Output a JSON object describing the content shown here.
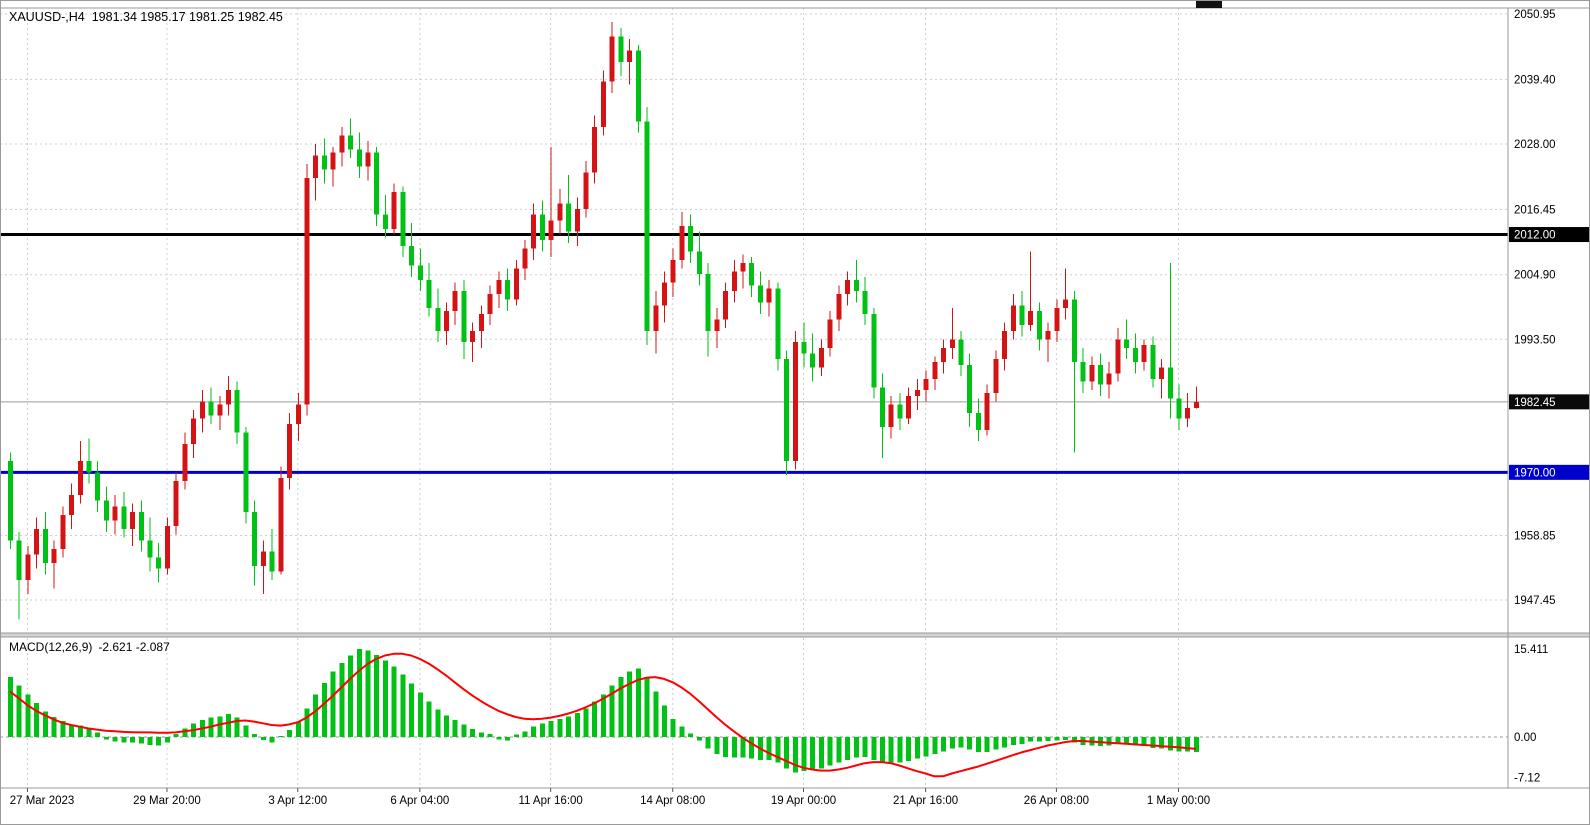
{
  "header": {
    "title": "XAUUSD-,H4",
    "ohlc": "1981.34 1985.17 1981.25 1982.45"
  },
  "macd_label": {
    "name": "MACD(12,26,9)",
    "values": "-2.621 -2.087"
  },
  "colors": {
    "bull": "#d41414",
    "bear": "#00c214",
    "macd_hist": "#00c214",
    "macd_signal": "#ff0000",
    "grid": "#cdcdcd",
    "frame": "#9a9a9a",
    "splitter": "#d6d3ce",
    "hline_black": "#000000",
    "hline_blue": "#0000cc",
    "current_line": "#9a9a9a",
    "badge_dark": "#0a0a0a",
    "badge_text": "#ffffff",
    "shift_marker": "#111111"
  },
  "chart_data": {
    "type": "candlestick",
    "symbol": "XAUUSD",
    "timeframe": "H4",
    "title": "XAUUSD-,H4 1981.34 1985.17 1981.25 1982.45",
    "last_ohlc": {
      "open": 1981.34,
      "high": 1985.17,
      "low": 1981.25,
      "close": 1982.45
    },
    "ylim": [
      1941.5,
      2052.5
    ],
    "price_axis": {
      "ticks": [
        {
          "v": 2050.95,
          "label": "2050.95"
        },
        {
          "v": 2039.4,
          "label": "2039.40"
        },
        {
          "v": 2028.0,
          "label": "2028.00"
        },
        {
          "v": 2016.45,
          "label": "2016.45"
        },
        {
          "v": 2004.9,
          "label": "2004.90"
        },
        {
          "v": 1993.5,
          "label": "1993.50"
        },
        {
          "v": 1958.85,
          "label": "1958.85"
        },
        {
          "v": 1947.45,
          "label": "1947.45"
        }
      ],
      "hlines": [
        {
          "v": 2012.0,
          "label": "2012.00",
          "bg": "#000000",
          "line_color": "#000000",
          "line_width": 3
        },
        {
          "v": 1970.0,
          "label": "1970.00",
          "bg": "#0000cc",
          "line_color": "#0000cc",
          "line_width": 3
        }
      ],
      "current": {
        "v": 1982.45,
        "label": "1982.45",
        "bg": "#0a0a0a",
        "line_color": "#9a9a9a",
        "line_width": 1
      }
    },
    "time_axis": [
      {
        "index": 2,
        "label": "27 Mar 2023"
      },
      {
        "index": 18,
        "label": "29 Mar 20:00"
      },
      {
        "index": 33,
        "label": "3 Apr 12:00"
      },
      {
        "index": 47,
        "label": "6 Apr 04:00"
      },
      {
        "index": 62,
        "label": "11 Apr 16:00"
      },
      {
        "index": 76,
        "label": "14 Apr 08:00"
      },
      {
        "index": 91,
        "label": "19 Apr 00:00"
      },
      {
        "index": 105,
        "label": "21 Apr 16:00"
      },
      {
        "index": 120,
        "label": "26 Apr 08:00"
      },
      {
        "index": 134,
        "label": "1 May 00:00"
      }
    ],
    "candles": [
      [
        1972,
        1973.5,
        1956.5,
        1958
      ],
      [
        1958,
        1959.5,
        1944,
        1951
      ],
      [
        1951,
        1957,
        1948.5,
        1955.5
      ],
      [
        1955.5,
        1962,
        1953,
        1960
      ],
      [
        1960,
        1963,
        1952,
        1954
      ],
      [
        1954,
        1958,
        1949.5,
        1956.5
      ],
      [
        1956.5,
        1964,
        1955,
        1962.5
      ],
      [
        1962.5,
        1968,
        1960,
        1966
      ],
      [
        1966,
        1975.5,
        1964.5,
        1972
      ],
      [
        1972,
        1976,
        1968,
        1970
      ],
      [
        1970,
        1972,
        1963,
        1965
      ],
      [
        1965,
        1967.5,
        1959.5,
        1961.5
      ],
      [
        1961.5,
        1966,
        1959,
        1964
      ],
      [
        1964,
        1966.5,
        1958.5,
        1960
      ],
      [
        1960,
        1964.5,
        1957,
        1963
      ],
      [
        1963,
        1965,
        1956,
        1958
      ],
      [
        1958,
        1962,
        1952.5,
        1955
      ],
      [
        1955,
        1957.5,
        1950.5,
        1953
      ],
      [
        1953,
        1962,
        1952,
        1960.5
      ],
      [
        1960.5,
        1970,
        1959,
        1968.5
      ],
      [
        1968.5,
        1977,
        1967,
        1975
      ],
      [
        1975,
        1981,
        1972.5,
        1979.5
      ],
      [
        1979.5,
        1984.5,
        1977,
        1982.5
      ],
      [
        1982.5,
        1985,
        1978.5,
        1980
      ],
      [
        1980,
        1983.5,
        1977.5,
        1982
      ],
      [
        1982,
        1987,
        1980,
        1984.5
      ],
      [
        1984.5,
        1986,
        1975,
        1977
      ],
      [
        1977,
        1978,
        1961,
        1963
      ],
      [
        1963,
        1965,
        1950,
        1953.5
      ],
      [
        1953.5,
        1958,
        1948.5,
        1956
      ],
      [
        1956,
        1960,
        1951,
        1952.5
      ],
      [
        1952.5,
        1971,
        1952,
        1969
      ],
      [
        1969,
        1980.5,
        1967,
        1978.5
      ],
      [
        1978.5,
        1984,
        1975.5,
        1982
      ],
      [
        1982,
        2024.5,
        1980,
        2022
      ],
      [
        2022,
        2028,
        2018,
        2026
      ],
      [
        2026,
        2029,
        2021,
        2023.5
      ],
      [
        2023.5,
        2027.5,
        2020.5,
        2026.5
      ],
      [
        2026.5,
        2031,
        2024,
        2029.5
      ],
      [
        2029.5,
        2032.5,
        2025.5,
        2027
      ],
      [
        2027,
        2030,
        2022,
        2024
      ],
      [
        2024,
        2028.5,
        2021.5,
        2026.5
      ],
      [
        2026.5,
        2027.5,
        2013.5,
        2015.5
      ],
      [
        2015.5,
        2019,
        2011.5,
        2013
      ],
      [
        2013,
        2021,
        2012,
        2019.5
      ],
      [
        2019.5,
        2020.5,
        2008,
        2010
      ],
      [
        2010,
        2014,
        2004.5,
        2006.5
      ],
      [
        2006.5,
        2009.5,
        2002,
        2004
      ],
      [
        2004,
        2007,
        1997.5,
        1999
      ],
      [
        1999,
        2002.5,
        1993,
        1995
      ],
      [
        1995,
        2000,
        1992.5,
        1998.5
      ],
      [
        1998.5,
        2003.5,
        1996,
        2002
      ],
      [
        2002,
        2004,
        1990,
        1993
      ],
      [
        1993,
        1996.5,
        1989.5,
        1995
      ],
      [
        1995,
        1999.5,
        1992,
        1998
      ],
      [
        1998,
        2003,
        1996,
        2001.5
      ],
      [
        2001.5,
        2005.5,
        1999,
        2004
      ],
      [
        2004,
        2006,
        1998.5,
        2000.5
      ],
      [
        2000.5,
        2007.5,
        1999.5,
        2006
      ],
      [
        2006,
        2011,
        2004,
        2009.5
      ],
      [
        2009.5,
        2017.5,
        2007.5,
        2015.5
      ],
      [
        2015.5,
        2018,
        2009,
        2011
      ],
      [
        2011,
        2027.5,
        2008,
        2014.5
      ],
      [
        2014.5,
        2020,
        2012,
        2017.5
      ],
      [
        2017.5,
        2022.5,
        2010.5,
        2012.5
      ],
      [
        2012.5,
        2018.5,
        2010,
        2016.5
      ],
      [
        2016.5,
        2025,
        2015,
        2023
      ],
      [
        2023,
        2033,
        2021,
        2031
      ],
      [
        2031,
        2041,
        2029.5,
        2039
      ],
      [
        2039,
        2049.5,
        2037,
        2047
      ],
      [
        2047,
        2048.5,
        2040,
        2042.5
      ],
      [
        2042.5,
        2046.5,
        2038.5,
        2044.5
      ],
      [
        2044.5,
        2045.5,
        2030,
        2032
      ],
      [
        2032,
        2034.5,
        1992.5,
        1995
      ],
      [
        1995,
        2002,
        1991,
        1999.5
      ],
      [
        1999.5,
        2005.5,
        1996.5,
        2003.5
      ],
      [
        2003.5,
        2009.5,
        2001,
        2007.5
      ],
      [
        2007.5,
        2016,
        2006,
        2013.5
      ],
      [
        2013.5,
        2015.5,
        2007,
        2009
      ],
      [
        2009,
        2012.5,
        2003,
        2005
      ],
      [
        2005,
        2007,
        1990.5,
        1995
      ],
      [
        1995,
        1999,
        1992,
        1997
      ],
      [
        1997,
        2003.5,
        1995.5,
        2002
      ],
      [
        2002,
        2007.5,
        2000,
        2005.5
      ],
      [
        2005.5,
        2008.5,
        2002.5,
        2007
      ],
      [
        2007,
        2008,
        2001,
        2003
      ],
      [
        2003,
        2005.5,
        1998,
        2000
      ],
      [
        2000,
        2004,
        1997.5,
        2002.5
      ],
      [
        2002.5,
        2003.5,
        1988,
        1990
      ],
      [
        1990,
        1991.5,
        1969.5,
        1972
      ],
      [
        1972,
        1995,
        1970.5,
        1993
      ],
      [
        1993,
        1996.5,
        1988.5,
        1991
      ],
      [
        1991,
        1994.5,
        1986,
        1988.5
      ],
      [
        1988.5,
        1993.5,
        1987,
        1992
      ],
      [
        1992,
        1998.5,
        1990.5,
        1997
      ],
      [
        1997,
        2003,
        1995,
        2001.5
      ],
      [
        2001.5,
        2005.5,
        1999.5,
        2004
      ],
      [
        2004,
        2007.5,
        2000,
        2002
      ],
      [
        2002,
        2004.5,
        1996,
        1998
      ],
      [
        1998,
        1999,
        1983,
        1985
      ],
      [
        1985,
        1987.5,
        1972.5,
        1978
      ],
      [
        1978,
        1983.5,
        1976,
        1982
      ],
      [
        1982,
        1984,
        1977.5,
        1979.5
      ],
      [
        1979.5,
        1985,
        1978.5,
        1983.5
      ],
      [
        1983.5,
        1986.5,
        1981,
        1984.5
      ],
      [
        1984.5,
        1988,
        1982.5,
        1986.5
      ],
      [
        1986.5,
        1990.5,
        1984.5,
        1989.5
      ],
      [
        1989.5,
        1993.5,
        1987.5,
        1992
      ],
      [
        1992,
        1999,
        1990,
        1993.5
      ],
      [
        1993.5,
        1995,
        1987,
        1989
      ],
      [
        1989,
        1991,
        1978,
        1980.5
      ],
      [
        1980.5,
        1983,
        1975.5,
        1977.5
      ],
      [
        1977.5,
        1985.5,
        1976.5,
        1984
      ],
      [
        1984,
        1991.5,
        1982.5,
        1990
      ],
      [
        1990,
        1996.5,
        1988,
        1995
      ],
      [
        1995,
        2001.5,
        1993.5,
        1999.5
      ],
      [
        1999.5,
        2002,
        1994,
        1996
      ],
      [
        1996,
        2009,
        1995,
        1998.5
      ],
      [
        1998.5,
        2000,
        1991.5,
        1993.5
      ],
      [
        1993.5,
        1996.5,
        1989.5,
        1995
      ],
      [
        1995,
        2000.5,
        1993,
        1999
      ],
      [
        1999,
        2006,
        1997,
        2000.5
      ],
      [
        2000.5,
        2002,
        1973.5,
        1989.5
      ],
      [
        1989.5,
        1992,
        1984,
        1986
      ],
      [
        1986,
        1990.5,
        1984.5,
        1989
      ],
      [
        1989,
        1991,
        1983.5,
        1985.5
      ],
      [
        1985.5,
        1989.5,
        1983,
        1987.5
      ],
      [
        1987.5,
        1995.5,
        1986,
        1993.5
      ],
      [
        1993.5,
        1997,
        1990,
        1992
      ],
      [
        1992,
        1994.5,
        1987.5,
        1989.5
      ],
      [
        1989.5,
        1993.5,
        1988,
        1992.5
      ],
      [
        1992.5,
        1994,
        1985,
        1986.5
      ],
      [
        1986.5,
        1990,
        1983,
        1988.5
      ],
      [
        1988.5,
        2007,
        1979.5,
        1983
      ],
      [
        1983,
        1985.5,
        1977.5,
        1979.5
      ],
      [
        1979.5,
        1984,
        1978,
        1981.34
      ],
      [
        1981.34,
        1985.17,
        1981.25,
        1982.45
      ]
    ],
    "indicator": {
      "name": "MACD",
      "params": "(12,26,9)",
      "current_values": [
        -2.621,
        -2.087
      ],
      "axis_ticks": [
        {
          "v": 15.411,
          "label": "15.411"
        },
        {
          "v": 0,
          "label": "0.00"
        },
        {
          "v": -7.12,
          "label": "-7.12"
        }
      ],
      "histogram": [
        10.5,
        9.0,
        7.5,
        6.0,
        4.5,
        3.5,
        2.8,
        2.2,
        2.0,
        1.6,
        0.8,
        -0.4,
        -0.8,
        -1.0,
        -1.0,
        -1.1,
        -1.4,
        -1.5,
        -1.0,
        0.5,
        1.5,
        2.4,
        3.0,
        3.4,
        3.6,
        4.0,
        3.4,
        2.0,
        0.5,
        -0.5,
        -1.0,
        0.2,
        1.2,
        2.6,
        5.0,
        7.5,
        9.5,
        11.5,
        13.0,
        14.3,
        15.4,
        15.2,
        14.4,
        13.4,
        12.4,
        11.0,
        9.4,
        7.8,
        6.2,
        4.8,
        3.8,
        3.0,
        2.2,
        1.4,
        0.8,
        0.5,
        -0.4,
        -0.6,
        0.4,
        1.0,
        1.8,
        2.4,
        2.8,
        3.2,
        3.6,
        4.2,
        5.0,
        6.2,
        7.5,
        9.0,
        10.5,
        11.5,
        12.0,
        10.5,
        8.0,
        5.5,
        3.2,
        1.8,
        0.6,
        -0.6,
        -2.0,
        -3.0,
        -3.5,
        -3.6,
        -3.6,
        -3.8,
        -4.0,
        -4.0,
        -4.5,
        -5.5,
        -6.2,
        -6.0,
        -5.8,
        -5.5,
        -5.0,
        -4.5,
        -4.0,
        -3.6,
        -3.5,
        -4.0,
        -4.5,
        -4.6,
        -4.5,
        -4.2,
        -3.8,
        -3.4,
        -3.0,
        -2.5,
        -2.0,
        -1.8,
        -2.2,
        -2.6,
        -2.6,
        -2.2,
        -1.8,
        -1.4,
        -1.2,
        -0.8,
        -0.8,
        -0.7,
        -0.6,
        -0.5,
        -1.0,
        -1.4,
        -1.5,
        -1.6,
        -1.5,
        -1.2,
        -1.2,
        -1.5,
        -1.6,
        -1.9,
        -2.0,
        -2.4,
        -2.5,
        -2.55,
        -2.621
      ],
      "signal": [
        8.0,
        6.8,
        5.6,
        4.6,
        3.8,
        3.1,
        2.5,
        2.1,
        1.8,
        1.5,
        1.3,
        1.1,
        1.0,
        0.9,
        0.85,
        0.8,
        0.8,
        0.75,
        0.75,
        0.8,
        1.0,
        1.2,
        1.5,
        1.8,
        2.2,
        2.5,
        2.8,
        2.9,
        2.7,
        2.4,
        2.1,
        2.0,
        2.2,
        2.6,
        3.4,
        4.5,
        5.8,
        7.2,
        8.7,
        10.2,
        11.6,
        12.8,
        13.7,
        14.3,
        14.6,
        14.6,
        14.3,
        13.7,
        12.9,
        11.9,
        10.8,
        9.6,
        8.4,
        7.3,
        6.3,
        5.4,
        4.6,
        4.0,
        3.5,
        3.2,
        3.1,
        3.2,
        3.4,
        3.7,
        4.1,
        4.6,
        5.2,
        5.9,
        6.7,
        7.6,
        8.5,
        9.3,
        10.0,
        10.4,
        10.5,
        10.2,
        9.6,
        8.7,
        7.6,
        6.3,
        4.9,
        3.5,
        2.2,
        1.0,
        -0.1,
        -1.1,
        -2.0,
        -2.8,
        -3.5,
        -4.2,
        -4.9,
        -5.4,
        -5.7,
        -5.9,
        -5.9,
        -5.7,
        -5.4,
        -5.0,
        -4.6,
        -4.4,
        -4.4,
        -4.6,
        -5.0,
        -5.5,
        -6.0,
        -6.4,
        -6.9,
        -6.9,
        -6.4,
        -6.0,
        -5.6,
        -5.2,
        -4.7,
        -4.2,
        -3.7,
        -3.2,
        -2.7,
        -2.3,
        -1.9,
        -1.5,
        -1.2,
        -0.9,
        -0.7,
        -0.7,
        -0.8,
        -0.9,
        -1.0,
        -1.1,
        -1.2,
        -1.3,
        -1.4,
        -1.5,
        -1.6,
        -1.7,
        -1.8,
        -1.95,
        -2.087
      ]
    }
  }
}
